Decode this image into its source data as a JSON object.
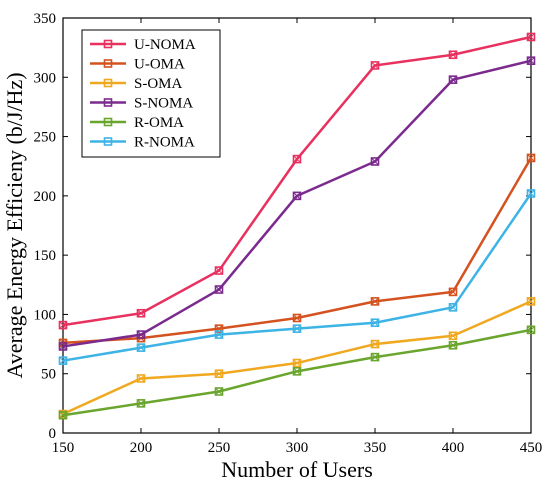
{
  "chart_data": {
    "type": "line",
    "xlabel": "Number of Users",
    "ylabel": "Average Energy Efficieny (b/J/Hz)",
    "x": [
      150,
      200,
      250,
      300,
      350,
      400,
      450
    ],
    "xlim": [
      150,
      450
    ],
    "ylim": [
      0,
      350
    ],
    "xticks": [
      "150",
      "200",
      "250",
      "300",
      "350",
      "400",
      "450"
    ],
    "yticks": [
      "0",
      "50",
      "100",
      "150",
      "200",
      "250",
      "300",
      "350"
    ],
    "grid": false,
    "legend_position": "top-left",
    "series": [
      {
        "name": "U-NOMA",
        "color": "#e8315f",
        "values": [
          91,
          101,
          137,
          231,
          310,
          319,
          334
        ]
      },
      {
        "name": "U-OMA",
        "color": "#d4521f",
        "values": [
          76,
          80,
          88,
          97,
          111,
          119,
          232
        ]
      },
      {
        "name": "S-OMA",
        "color": "#f0a820",
        "values": [
          16,
          46,
          50,
          59,
          75,
          82,
          111
        ]
      },
      {
        "name": "S-NOMA",
        "color": "#7b2a8e",
        "values": [
          73,
          83,
          121,
          200,
          229,
          298,
          314
        ]
      },
      {
        "name": "R-OMA",
        "color": "#6aa52e",
        "values": [
          15,
          25,
          35,
          52,
          64,
          74,
          87
        ]
      },
      {
        "name": "R-NOMA",
        "color": "#3db3e6",
        "values": [
          61,
          72,
          83,
          88,
          93,
          106,
          202
        ]
      }
    ]
  }
}
